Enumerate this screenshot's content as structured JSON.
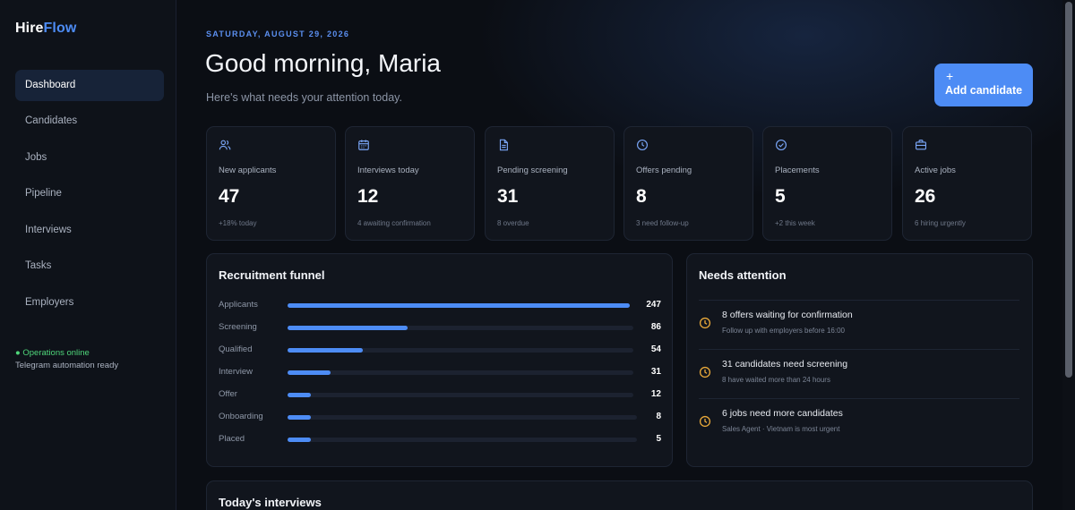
{
  "brand": {
    "part1": "Hire",
    "part2": "Flow",
    "accent": "#4d8cf5"
  },
  "sidebar": {
    "items": [
      {
        "label": "Dashboard",
        "active": true
      },
      {
        "label": "Candidates"
      },
      {
        "label": "Jobs"
      },
      {
        "label": "Pipeline"
      },
      {
        "label": "Interviews"
      },
      {
        "label": "Tasks"
      },
      {
        "label": "Employers"
      }
    ],
    "status_online": "● Operations online",
    "status_detail": "Telegram automation ready"
  },
  "header": {
    "date": "SATURDAY, AUGUST 29, 2026",
    "greeting": "Good morning, Maria",
    "subtitle": "Here's what needs your attention today.",
    "add_button_icon": "+",
    "add_button_label": "Add candidate"
  },
  "stats": [
    {
      "icon": "users-icon",
      "label": "New applicants",
      "value": "47",
      "note": "+18% today"
    },
    {
      "icon": "calendar-icon",
      "label": "Interviews today",
      "value": "12",
      "note": "4 awaiting confirmation"
    },
    {
      "icon": "document-icon",
      "label": "Pending screening",
      "value": "31",
      "note": "8 overdue"
    },
    {
      "icon": "clock-icon",
      "label": "Offers pending",
      "value": "8",
      "note": "3 need follow-up"
    },
    {
      "icon": "check-circle-icon",
      "label": "Placements",
      "value": "5",
      "note": "+2 this week"
    },
    {
      "icon": "briefcase-icon",
      "label": "Active jobs",
      "value": "26",
      "note": "6 hiring urgently"
    }
  ],
  "funnel": {
    "title": "Recruitment funnel",
    "max": 247,
    "rows": [
      {
        "label": "Applicants",
        "value": 247
      },
      {
        "label": "Screening",
        "value": 86
      },
      {
        "label": "Qualified",
        "value": 54
      },
      {
        "label": "Interview",
        "value": 31
      },
      {
        "label": "Offer",
        "value": 12
      },
      {
        "label": "Onboarding",
        "value": 8
      },
      {
        "label": "Placed",
        "value": 5
      }
    ]
  },
  "attention": {
    "title": "Needs attention",
    "icon_color": "#e9a93a",
    "items": [
      {
        "title": "8 offers waiting for confirmation",
        "detail": "Follow up with employers before 16:00"
      },
      {
        "title": "31 candidates need screening",
        "detail": "8 have waited more than 24 hours"
      },
      {
        "title": "6 jobs need more candidates",
        "detail": "Sales Agent · Vietnam is most urgent"
      }
    ]
  },
  "interviews": {
    "title": "Today's interviews"
  }
}
